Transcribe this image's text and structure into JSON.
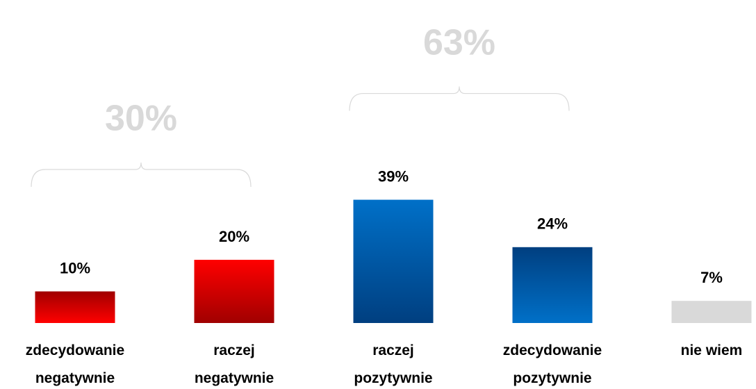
{
  "chart_data": {
    "type": "bar",
    "categories": [
      [
        "zdecydowanie",
        "negatywnie"
      ],
      [
        "raczej",
        "negatywnie"
      ],
      [
        "raczej",
        "pozytywnie"
      ],
      [
        "zdecydowanie",
        "pozytywnie"
      ],
      [
        "nie wiem"
      ]
    ],
    "values": [
      10,
      20,
      39,
      24,
      7
    ],
    "value_labels": [
      "10%",
      "20%",
      "39%",
      "24%",
      "7%"
    ],
    "colors": [
      [
        "#a00000",
        "#ff0000"
      ],
      [
        "#ff0000",
        "#a00000"
      ],
      [
        "#0070c8",
        "#003f80"
      ],
      [
        "#003f80",
        "#0070c8"
      ],
      [
        "#d9d9d9",
        "#d9d9d9"
      ]
    ],
    "annotations": [
      {
        "value": 30,
        "label": "30%"
      },
      {
        "value": 63,
        "label": "63%"
      }
    ]
  }
}
